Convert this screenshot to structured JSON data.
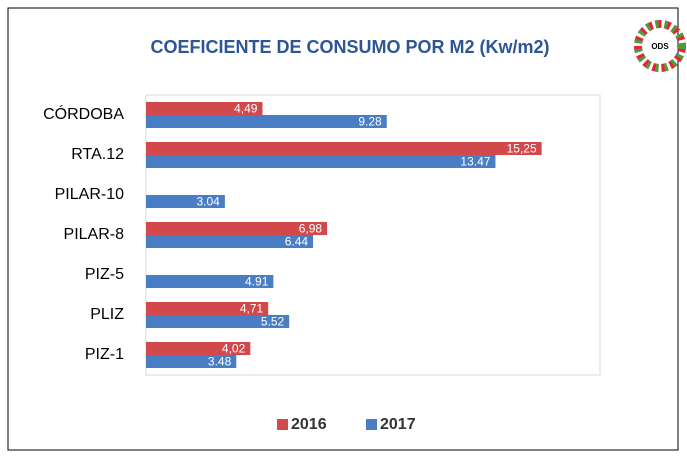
{
  "chart_data": {
    "type": "hbar",
    "title": "COEFICIENTE DE CONSUMO POR M2 (Kw/m2)",
    "logo_text": "ODS",
    "categories": [
      "CÓRDOBA",
      "RTA.12",
      "PILAR-10",
      "PILAR-8",
      "PIZ-5",
      "PLIZ",
      "PIZ-1"
    ],
    "series": [
      {
        "name": "2016",
        "color": "#d2494b",
        "values": [
          4.49,
          15.25,
          null,
          6.98,
          null,
          4.71,
          4.02
        ],
        "value_labels": [
          "4,49",
          "15,25",
          null,
          "6,98",
          null,
          "4,71",
          "4,02"
        ]
      },
      {
        "name": "2017",
        "color": "#4a7ec4",
        "values": [
          9.28,
          13.47,
          3.04,
          6.44,
          4.91,
          5.52,
          3.48
        ]
      }
    ],
    "xlim": [
      0,
      17.5
    ]
  }
}
